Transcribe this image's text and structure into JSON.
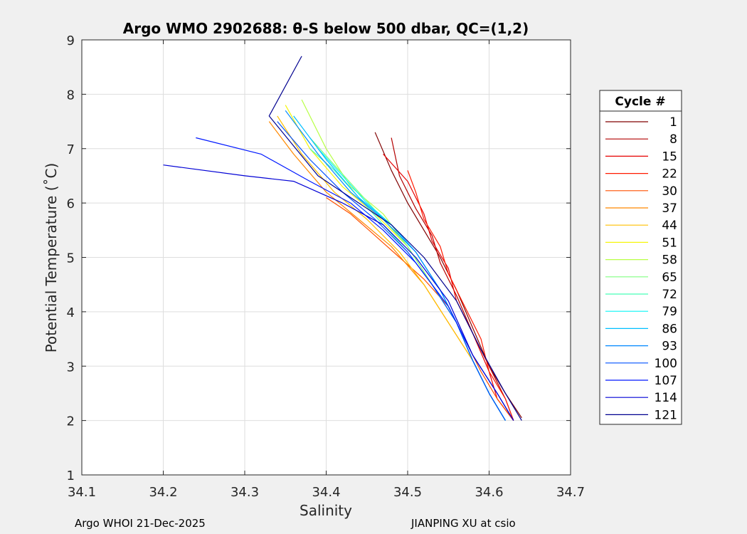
{
  "chart_data": {
    "type": "line",
    "title": "Argo WMO 2902688: θ-S below 500 dbar,  QC=(1,2)",
    "xlabel": "Salinity",
    "ylabel": "Potential Temperature (˚C)",
    "xlim": [
      34.1,
      34.7
    ],
    "ylim": [
      1,
      9
    ],
    "xticks": [
      "34.1",
      "34.2",
      "34.3",
      "34.4",
      "34.5",
      "34.6",
      "34.7"
    ],
    "yticks": [
      "1",
      "2",
      "3",
      "4",
      "5",
      "6",
      "7",
      "8",
      "9"
    ],
    "grid": true,
    "legend_title": "Cycle #",
    "legend_entries": [
      "1",
      "8",
      "15",
      "22",
      "30",
      "37",
      "44",
      "51",
      "58",
      "65",
      "72",
      "79",
      "86",
      "93",
      "100",
      "107",
      "114",
      "121"
    ],
    "legend_colors": [
      "#800000",
      "#b30000",
      "#e60000",
      "#ff1a00",
      "#ff5000",
      "#ff8800",
      "#ffbf00",
      "#f5f50a",
      "#b8ff47",
      "#80ff80",
      "#47ffb8",
      "#0af5f5",
      "#00bfff",
      "#0088ff",
      "#0050ff",
      "#0018ff",
      "#0000d5",
      "#00008f"
    ],
    "series": [
      {
        "name": "1",
        "color": "#800000",
        "salinity": [
          34.46,
          34.48,
          34.5,
          34.52,
          34.54,
          34.56,
          34.58,
          34.6,
          34.62,
          34.64
        ],
        "theta": [
          7.3,
          6.6,
          6.0,
          5.5,
          5.0,
          4.4,
          3.7,
          3.0,
          2.5,
          2.05
        ]
      },
      {
        "name": "8",
        "color": "#b30000",
        "salinity": [
          34.48,
          34.49,
          34.51,
          34.53,
          34.54,
          34.56,
          34.58,
          34.6,
          34.62,
          34.63
        ],
        "theta": [
          7.2,
          6.5,
          5.9,
          5.4,
          4.9,
          4.3,
          3.6,
          3.0,
          2.4,
          2.0
        ]
      },
      {
        "name": "15",
        "color": "#e60000",
        "salinity": [
          34.47,
          34.5,
          34.52,
          34.53,
          34.55,
          34.56,
          34.58,
          34.6,
          34.61,
          34.63
        ],
        "theta": [
          6.9,
          6.4,
          5.8,
          5.3,
          4.8,
          4.2,
          3.6,
          2.9,
          2.4,
          2.0
        ]
      },
      {
        "name": "22",
        "color": "#ff1a00",
        "salinity": [
          34.5,
          34.51,
          34.52,
          34.54,
          34.55,
          34.57,
          34.59,
          34.6,
          34.62,
          34.63
        ],
        "theta": [
          6.6,
          6.2,
          5.7,
          5.2,
          4.7,
          4.1,
          3.5,
          2.9,
          2.4,
          2.0
        ]
      },
      {
        "name": "30",
        "color": "#ff5000",
        "salinity": [
          34.4,
          34.43,
          34.46,
          34.49,
          34.52,
          34.55,
          34.57,
          34.59,
          34.61,
          34.63
        ],
        "theta": [
          6.1,
          5.8,
          5.4,
          5.0,
          4.6,
          4.1,
          3.5,
          2.9,
          2.4,
          2.0
        ]
      },
      {
        "name": "37",
        "color": "#ff8800",
        "salinity": [
          34.33,
          34.36,
          34.4,
          34.44,
          34.48,
          34.52,
          34.55,
          34.58,
          34.6,
          34.62
        ],
        "theta": [
          7.5,
          6.9,
          6.2,
          5.7,
          5.2,
          4.5,
          3.8,
          3.1,
          2.5,
          2.0
        ]
      },
      {
        "name": "44",
        "color": "#ffbf00",
        "salinity": [
          34.34,
          34.37,
          34.41,
          34.45,
          34.49,
          34.52,
          34.55,
          34.58,
          34.6,
          34.62
        ],
        "theta": [
          7.6,
          6.9,
          6.2,
          5.7,
          5.1,
          4.5,
          3.8,
          3.1,
          2.5,
          2.0
        ]
      },
      {
        "name": "51",
        "color": "#f5f50a",
        "salinity": [
          34.35,
          34.38,
          34.42,
          34.46,
          34.5,
          34.53,
          34.56,
          34.58,
          34.6,
          34.62
        ],
        "theta": [
          7.8,
          7.0,
          6.3,
          5.8,
          5.2,
          4.5,
          3.8,
          3.1,
          2.5,
          2.0
        ]
      },
      {
        "name": "58",
        "color": "#b8ff47",
        "salinity": [
          34.37,
          34.4,
          34.43,
          34.47,
          34.5,
          34.53,
          34.56,
          34.58,
          34.6,
          34.62
        ],
        "theta": [
          7.9,
          7.0,
          6.3,
          5.8,
          5.2,
          4.5,
          3.8,
          3.1,
          2.5,
          2.0
        ]
      },
      {
        "name": "65",
        "color": "#80ff80",
        "salinity": [
          34.38,
          34.41,
          34.44,
          34.47,
          34.5,
          34.53,
          34.56,
          34.58,
          34.6,
          34.62
        ],
        "theta": [
          7.2,
          6.7,
          6.2,
          5.7,
          5.2,
          4.5,
          3.8,
          3.1,
          2.5,
          2.0
        ]
      },
      {
        "name": "72",
        "color": "#47ffb8",
        "salinity": [
          34.38,
          34.41,
          34.44,
          34.47,
          34.5,
          34.53,
          34.56,
          34.58,
          34.6,
          34.62
        ],
        "theta": [
          7.0,
          6.6,
          6.1,
          5.6,
          5.1,
          4.5,
          3.8,
          3.1,
          2.5,
          2.0
        ]
      },
      {
        "name": "79",
        "color": "#0af5f5",
        "salinity": [
          34.39,
          34.42,
          34.45,
          34.48,
          34.51,
          34.54,
          34.56,
          34.58,
          34.6,
          34.62
        ],
        "theta": [
          7.0,
          6.5,
          6.0,
          5.6,
          5.1,
          4.4,
          3.8,
          3.1,
          2.5,
          2.0
        ]
      },
      {
        "name": "86",
        "color": "#00bfff",
        "salinity": [
          34.36,
          34.4,
          34.44,
          34.48,
          34.51,
          34.54,
          34.56,
          34.58,
          34.6,
          34.62
        ],
        "theta": [
          7.6,
          6.8,
          6.1,
          5.6,
          5.1,
          4.4,
          3.8,
          3.1,
          2.5,
          2.0
        ]
      },
      {
        "name": "93",
        "color": "#0088ff",
        "salinity": [
          34.35,
          34.39,
          34.43,
          34.47,
          34.51,
          34.54,
          34.56,
          34.58,
          34.6,
          34.62
        ],
        "theta": [
          7.7,
          6.9,
          6.2,
          5.7,
          5.1,
          4.4,
          3.8,
          3.1,
          2.5,
          2.0
        ]
      },
      {
        "name": "100",
        "color": "#0050ff",
        "salinity": [
          34.34,
          34.38,
          34.42,
          34.46,
          34.5,
          34.53,
          34.56,
          34.58,
          34.6,
          34.62
        ],
        "theta": [
          7.5,
          6.8,
          6.2,
          5.7,
          5.1,
          4.5,
          3.8,
          3.1,
          2.5,
          2.0
        ]
      },
      {
        "name": "107",
        "color": "#0018ff",
        "salinity": [
          34.24,
          34.32,
          34.38,
          34.43,
          34.47,
          34.51,
          34.55,
          34.58,
          34.61,
          34.63
        ],
        "theta": [
          7.2,
          6.9,
          6.4,
          6.0,
          5.5,
          4.9,
          4.1,
          3.2,
          2.5,
          2.0
        ]
      },
      {
        "name": "114",
        "color": "#0000d5",
        "salinity": [
          34.2,
          34.3,
          34.36,
          34.42,
          34.47,
          34.51,
          34.55,
          34.58,
          34.61,
          34.63
        ],
        "theta": [
          6.7,
          6.5,
          6.4,
          6.0,
          5.6,
          5.0,
          4.2,
          3.2,
          2.5,
          2.0
        ]
      },
      {
        "name": "121",
        "color": "#00008f",
        "salinity": [
          34.37,
          34.33,
          34.39,
          34.44,
          34.48,
          34.52,
          34.56,
          34.59,
          34.62,
          34.64
        ],
        "theta": [
          8.7,
          7.6,
          6.5,
          6.0,
          5.6,
          5.0,
          4.2,
          3.3,
          2.5,
          2.0
        ]
      }
    ]
  },
  "footer": {
    "left": "Argo WHOI 21-Dec-2025",
    "right": "JIANPING XU at csio"
  }
}
